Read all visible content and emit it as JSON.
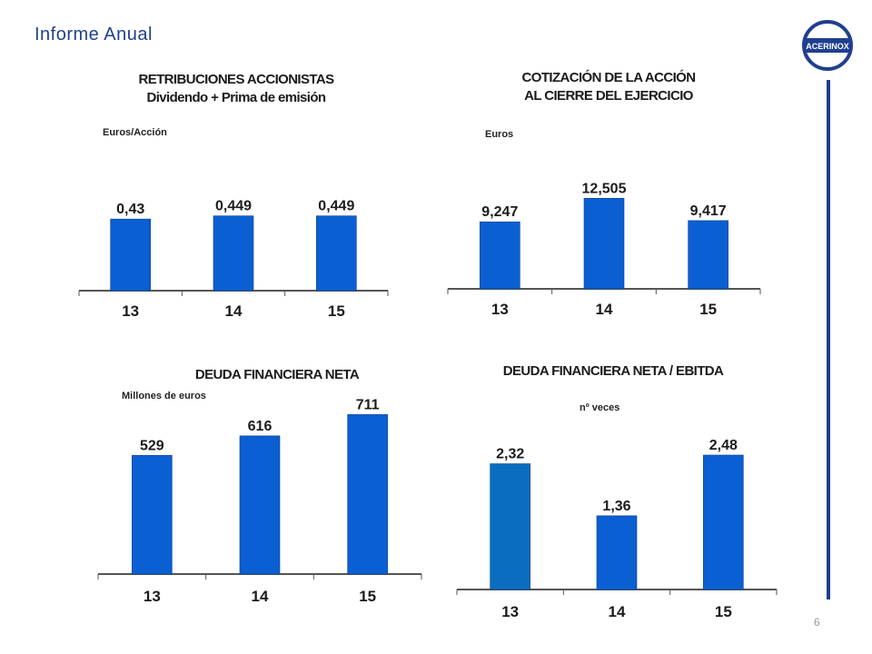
{
  "header": {
    "title": "Informe Anual",
    "logo_text": "ACERINOX",
    "page_number": "6"
  },
  "colors": {
    "brand": "#1f3f8f",
    "bar": "#0a5fd3",
    "bar_alt": "#0b6dc0",
    "axis": "#555555"
  },
  "chart_data": [
    {
      "type": "bar",
      "title_lines": [
        "RETRIBUCIONES ACCIONISTAS",
        "Dividendo + Prima de emisión"
      ],
      "unit": "Euros/Acción",
      "categories": [
        "13",
        "14",
        "15"
      ],
      "values": [
        0.43,
        0.449,
        0.449
      ],
      "labels": [
        "0,43",
        "0,449",
        "0,449"
      ],
      "ylim": [
        0,
        0.6
      ]
    },
    {
      "type": "bar",
      "title_lines": [
        "COTIZACIÓN DE LA ACCIÓN",
        "AL CIERRE DEL EJERCICIO"
      ],
      "unit": "Euros",
      "categories": [
        "13",
        "14",
        "15"
      ],
      "values": [
        9.247,
        12.505,
        9.417
      ],
      "labels": [
        "9,247",
        "12,505",
        "9,417"
      ],
      "ylim": [
        0,
        16.8
      ]
    },
    {
      "type": "bar",
      "title_lines": [
        "DEUDA FINANCIERA NETA"
      ],
      "unit": "Millones de euros",
      "categories": [
        "13",
        "14",
        "15"
      ],
      "values": [
        529,
        616,
        711
      ],
      "labels": [
        "529",
        "616",
        "711"
      ],
      "ylim": [
        0,
        822
      ]
    },
    {
      "type": "bar",
      "title_lines": [
        "DEUDA FINANCIERA NETA / EBITDA"
      ],
      "unit": "nº veces",
      "categories": [
        "13",
        "14",
        "15"
      ],
      "values": [
        2.32,
        1.36,
        2.48
      ],
      "labels": [
        "2,32",
        "1,36",
        "2,48"
      ],
      "ylim": [
        0,
        3.1
      ]
    }
  ]
}
